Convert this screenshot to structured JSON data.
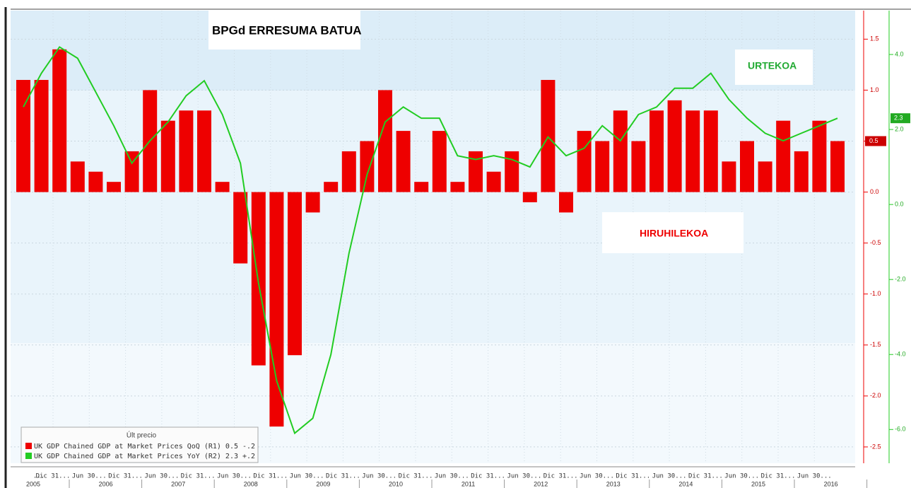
{
  "chart_data": {
    "type": "bar_line",
    "title": "BPGd ERRESUMA BATUA",
    "annotations": [
      "URTEKOA",
      "HIRUHILEKOA"
    ],
    "legend_title": "Últ precio",
    "x_tick_labels": [
      "...",
      "Dic 31...",
      "Jun 30...",
      "Dic 31...",
      "Jun 30...",
      "Dic 31...",
      "Jun 30...",
      "Dic 31...",
      "Jun 30...",
      "Dic 31...",
      "Jun 30...",
      "Dic 31...",
      "Jun 30...",
      "Dic 31...",
      "Jun 30...",
      "Dic 31...",
      "Jun 30...",
      "Dic 31...",
      "Jun 30...",
      "Dic 31...",
      "Jun 30...",
      "Dic 31...",
      "Jun 30..."
    ],
    "years": [
      "2005",
      "2006",
      "2007",
      "2008",
      "2009",
      "2010",
      "2011",
      "2012",
      "2013",
      "2014",
      "2015",
      "2016"
    ],
    "series": [
      {
        "name": "UK GDP Chained GDP at Market Prices QoQ (R1) 0.5 -.2",
        "color": "#ee0000",
        "kind": "bar",
        "values": [
          1.1,
          1.1,
          1.4,
          0.3,
          0.2,
          0.1,
          0.4,
          1.0,
          0.7,
          0.8,
          0.8,
          0.1,
          -0.7,
          -1.7,
          -2.3,
          -1.6,
          -0.2,
          0.1,
          0.4,
          0.5,
          1.0,
          0.6,
          0.1,
          0.6,
          0.1,
          0.4,
          0.2,
          0.4,
          -0.1,
          1.1,
          -0.2,
          0.6,
          0.5,
          0.8,
          0.5,
          0.8,
          0.9,
          0.8,
          0.8,
          0.3,
          0.5,
          0.3,
          0.7,
          0.4,
          0.7,
          0.5
        ]
      },
      {
        "name": "UK GDP Chained GDP at Market Prices YoY (R2) 2.3 +.2",
        "color": "#22cc22",
        "kind": "line",
        "axis": "y2",
        "values": [
          2.6,
          3.5,
          4.2,
          3.9,
          3.0,
          2.1,
          1.1,
          1.7,
          2.2,
          2.9,
          3.3,
          2.4,
          1.1,
          -2.1,
          -4.7,
          -6.1,
          -5.7,
          -4.0,
          -1.3,
          0.8,
          2.2,
          2.6,
          2.3,
          2.3,
          1.3,
          1.2,
          1.3,
          1.2,
          1.0,
          1.8,
          1.3,
          1.5,
          2.1,
          1.7,
          2.4,
          2.6,
          3.1,
          3.1,
          3.5,
          2.8,
          2.3,
          1.9,
          1.7,
          1.9,
          2.1,
          2.3
        ]
      }
    ],
    "ylim": [
      -2.66,
      1.78
    ],
    "yticks": [
      {
        "value": -2.5,
        "label": "-2.5"
      },
      {
        "value": -2,
        "label": "-2.0"
      },
      {
        "value": -1.5,
        "label": "-1.5"
      },
      {
        "value": -1,
        "label": "-1.0"
      },
      {
        "value": -0.5,
        "label": "-0.5"
      },
      {
        "value": 0,
        "label": "0.0"
      },
      {
        "value": 0.5,
        "label": "0.5"
      },
      {
        "value": 1,
        "label": "1.0"
      },
      {
        "value": 1.5,
        "label": "1.5"
      }
    ],
    "y2lim": [
      -6.9,
      5.17
    ],
    "y2ticks": [
      {
        "value": -6,
        "label": "-6.0"
      },
      {
        "value": -4,
        "label": "-4.0"
      },
      {
        "value": -2,
        "label": "-2.0"
      },
      {
        "value": 0,
        "label": "0.0"
      },
      {
        "value": 2,
        "label": "2.0"
      },
      {
        "value": 4,
        "label": "4.0"
      }
    ],
    "grid": true
  }
}
